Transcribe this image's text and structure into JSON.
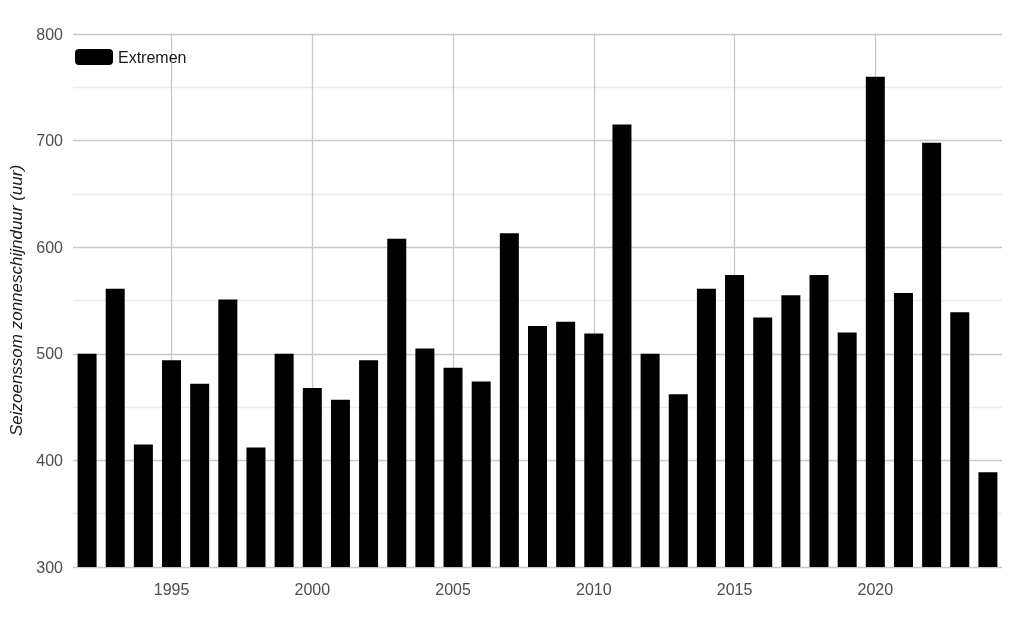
{
  "chart_data": {
    "type": "bar",
    "ylabel": "Seizoenssom zonneschijnduur (uur)",
    "x": [
      1992,
      1993,
      1994,
      1995,
      1996,
      1997,
      1998,
      1999,
      2000,
      2001,
      2002,
      2003,
      2004,
      2005,
      2006,
      2007,
      2008,
      2009,
      2010,
      2011,
      2012,
      2013,
      2014,
      2015,
      2016,
      2017,
      2018,
      2019,
      2020,
      2021,
      2022,
      2023,
      2024
    ],
    "series": [
      {
        "name": "Extremen",
        "color": "#000000",
        "values": [
          500,
          561,
          415,
          494,
          472,
          551,
          412,
          500,
          468,
          457,
          494,
          608,
          505,
          487,
          474,
          613,
          526,
          530,
          519,
          715,
          500,
          462,
          561,
          574,
          534,
          555,
          574,
          520,
          760,
          557,
          698,
          539,
          389
        ]
      }
    ],
    "xlim": [
      1991.5,
      2024.5
    ],
    "xticks": [
      1995,
      2000,
      2005,
      2010,
      2015,
      2020
    ],
    "ylim": [
      300,
      800
    ],
    "yticks": [
      300,
      400,
      500,
      600,
      700,
      800
    ],
    "grid": true,
    "legend": "top left"
  }
}
